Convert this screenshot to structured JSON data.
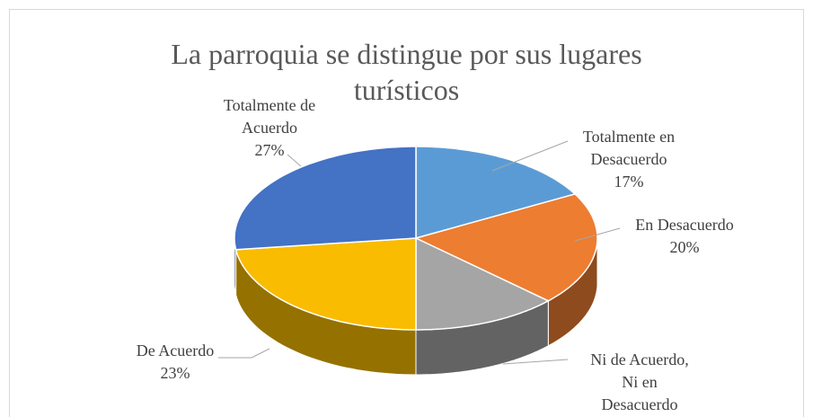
{
  "chart_data": {
    "type": "pie",
    "three_d": true,
    "title": "La parroquia se distingue por sus lugares turísticos",
    "categories": [
      "Totalmente en Desacuerdo",
      "En Desacuerdo",
      "Ni de Acuerdo, Ni en Desacuerdo",
      "De Acuerdo",
      "Totalmente de Acuerdo"
    ],
    "values": [
      17,
      20,
      13,
      23,
      27
    ],
    "value_labels": [
      "17%",
      "20%",
      null,
      "23%",
      "27%"
    ],
    "colors": [
      "#5b9bd5",
      "#ed7d31",
      "#a5a5a5",
      "#f9bc00",
      "#4472c4"
    ]
  }
}
